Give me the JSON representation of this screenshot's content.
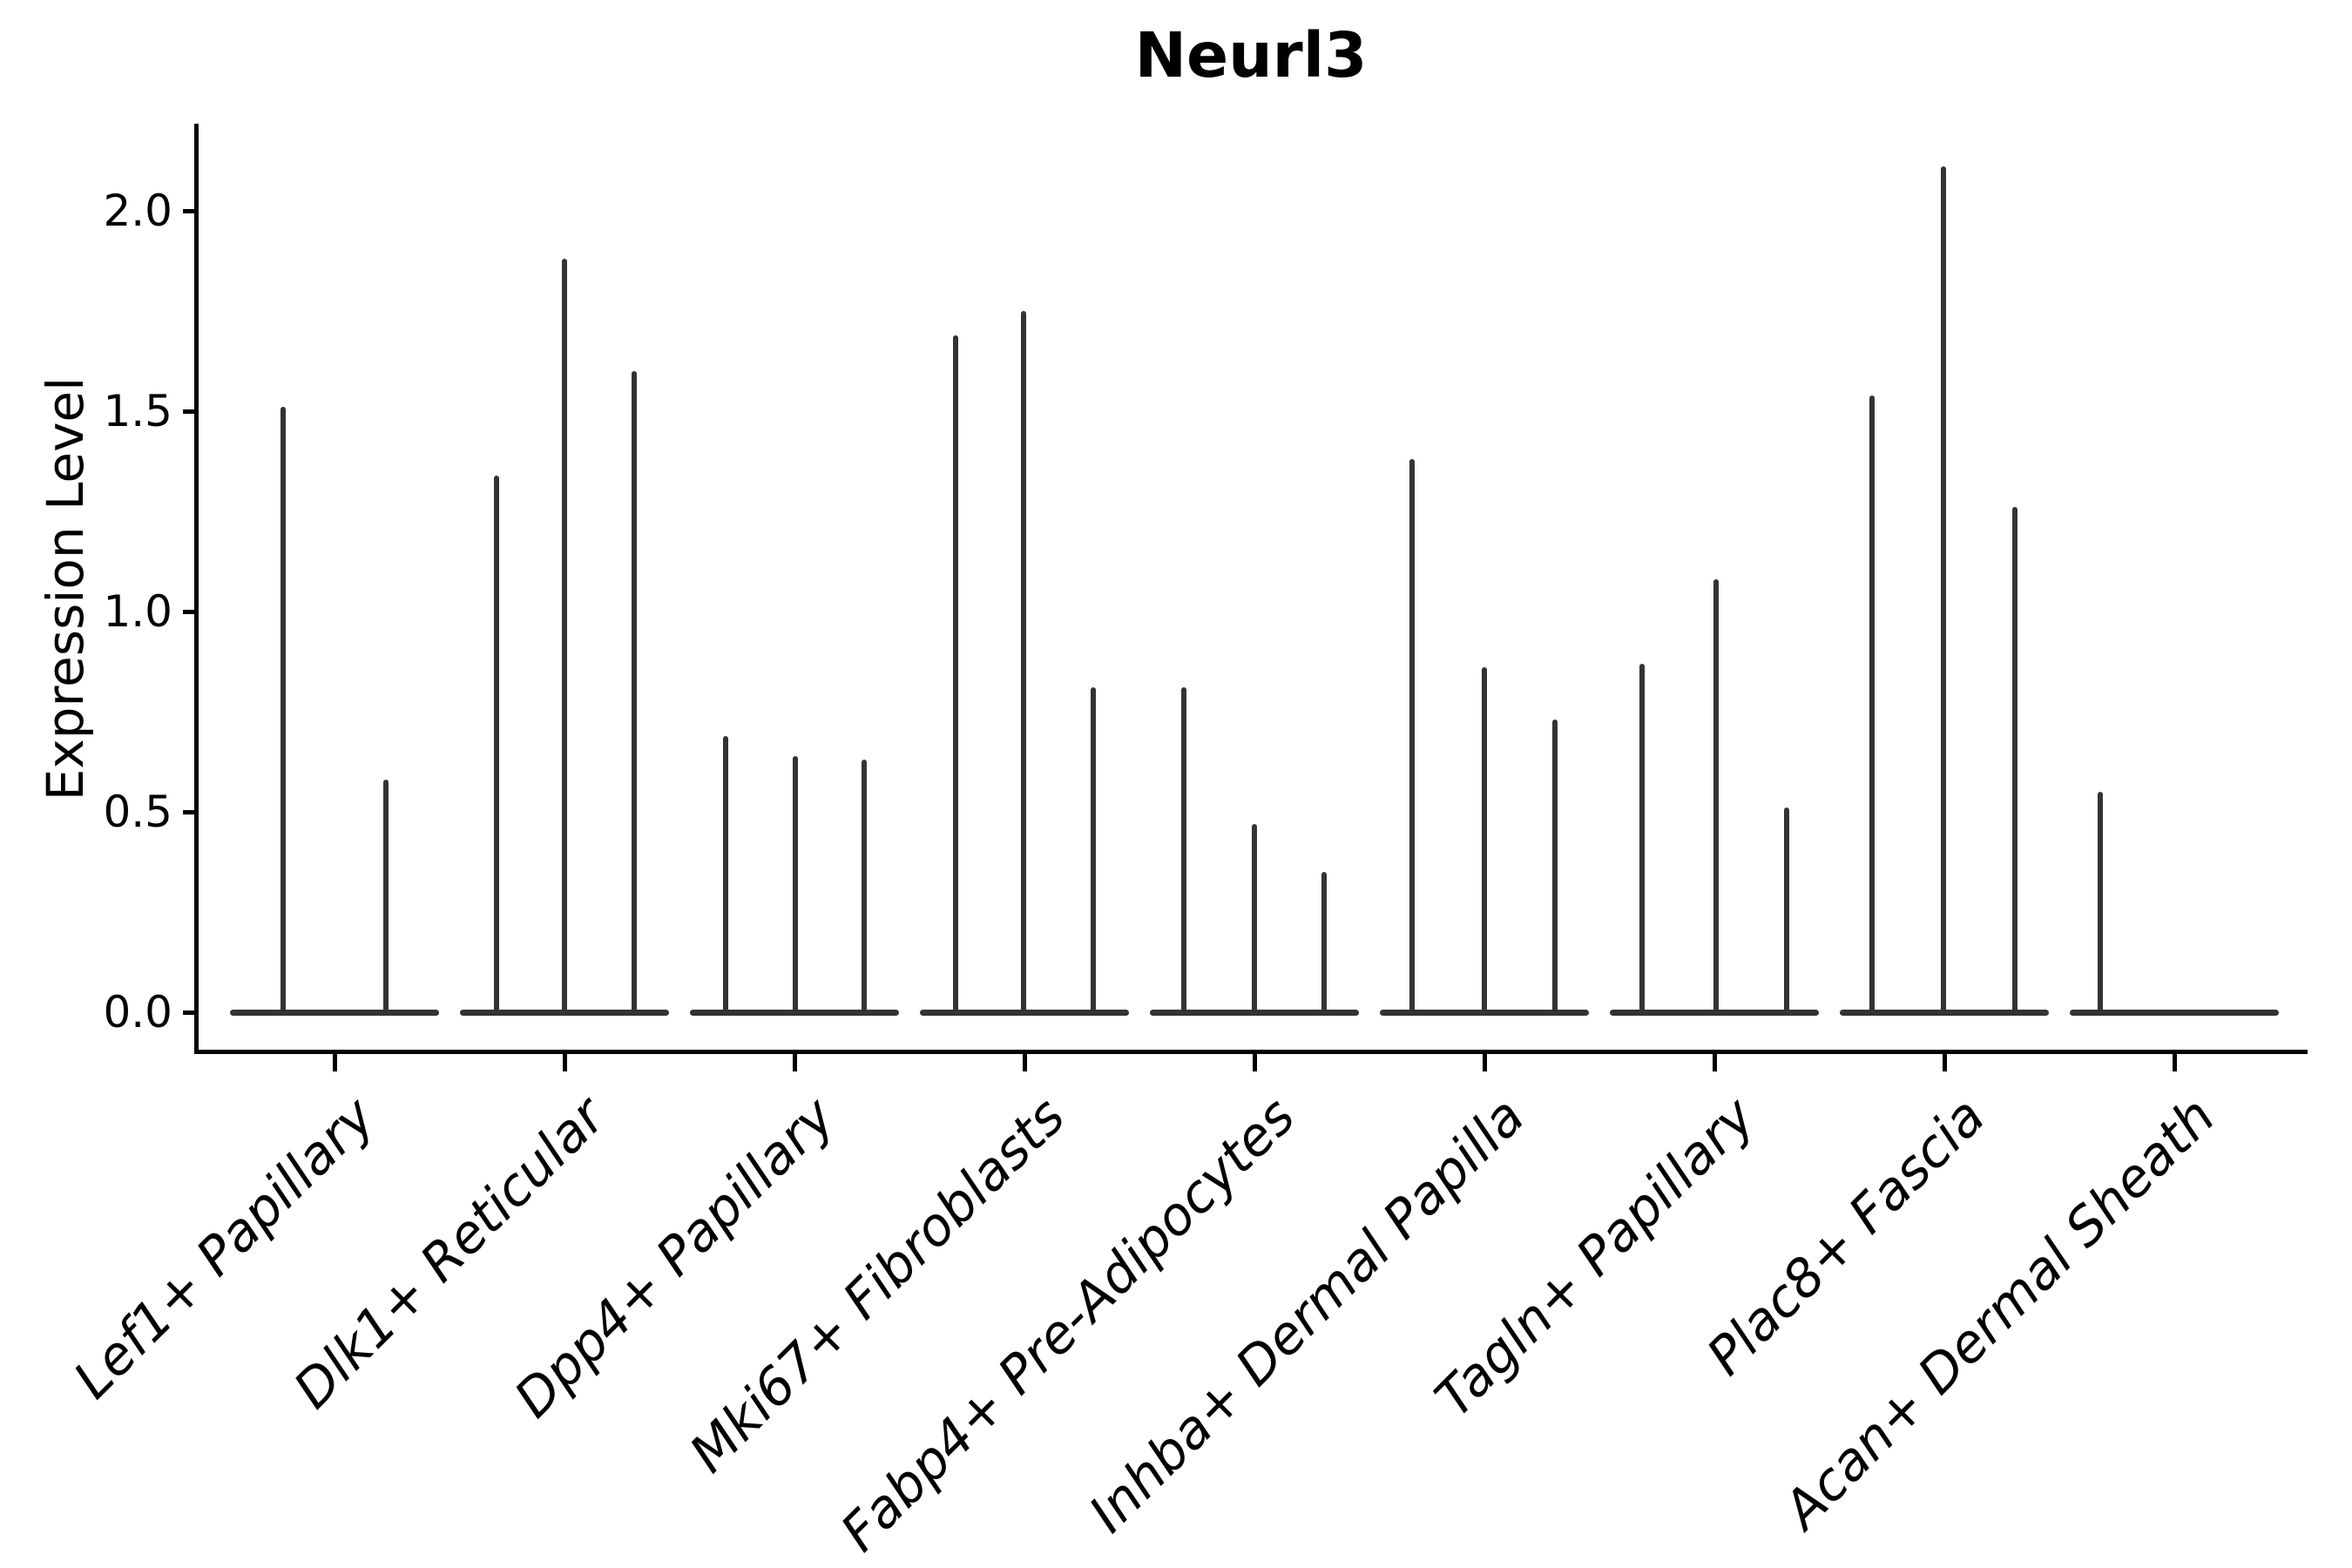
{
  "title": "Neurl3",
  "axes": {
    "ylabel": "Expression Level",
    "ytick_labels": [
      "0.0",
      "0.5",
      "1.0",
      "1.5",
      "2.0"
    ]
  },
  "chart_data": {
    "type": "violin",
    "title": "Neurl3",
    "xlabel": "",
    "ylabel": "Expression Level",
    "ylim": [
      -0.1,
      2.22
    ],
    "yticks": [
      0.0,
      0.5,
      1.0,
      1.5,
      2.0
    ],
    "grid": false,
    "legend_position": "none",
    "categories": [
      "Lef1+ Papillary",
      "Dlk1+ Reticular",
      "Dpp4+ Papillary",
      "Mki67+ Fibroblasts",
      "Fabp4+ Pre-Adipocytes",
      "Inhba+ Dermal Papilla",
      "Tagln+ Papillary",
      "Plac8+ Fascia",
      "Acan+ Dermal Sheath"
    ],
    "description": "Needle-thin violins (sparse single-cell expression). Each category shows a flat zero-line violin band plus 1-3 vertical spikes; spike value = peak expression level reached.",
    "groups": [
      {
        "label": "Lef1+ Papillary",
        "spikes": [
          {
            "dx": -59,
            "value": 1.51
          },
          {
            "dx": 59,
            "value": 0.58
          }
        ]
      },
      {
        "label": "Dlk1+ Reticular",
        "spikes": [
          {
            "dx": -78,
            "value": 1.34
          },
          {
            "dx": 0,
            "value": 1.88
          },
          {
            "dx": 80,
            "value": 1.6
          }
        ]
      },
      {
        "label": "Dpp4+ Papillary",
        "spikes": [
          {
            "dx": -79,
            "value": 0.69
          },
          {
            "dx": 1,
            "value": 0.64
          },
          {
            "dx": 80,
            "value": 0.63
          }
        ]
      },
      {
        "label": "Mki67+ Fibroblasts",
        "spikes": [
          {
            "dx": -79,
            "value": 1.69
          },
          {
            "dx": -1,
            "value": 1.75
          },
          {
            "dx": 79,
            "value": 0.81
          }
        ]
      },
      {
        "label": "Fabp4+ Pre-Adipocytes",
        "spikes": [
          {
            "dx": -81,
            "value": 0.81
          },
          {
            "dx": 0,
            "value": 0.47
          },
          {
            "dx": 80,
            "value": 0.35
          }
        ]
      },
      {
        "label": "Inhba+ Dermal Papilla",
        "spikes": [
          {
            "dx": -83,
            "value": 1.38
          },
          {
            "dx": 0,
            "value": 0.86
          },
          {
            "dx": 81,
            "value": 0.73
          }
        ]
      },
      {
        "label": "Tagln+ Papillary",
        "spikes": [
          {
            "dx": -83,
            "value": 0.87
          },
          {
            "dx": 2,
            "value": 1.08
          },
          {
            "dx": 83,
            "value": 0.51
          }
        ]
      },
      {
        "label": "Plac8+ Fascia",
        "spikes": [
          {
            "dx": -83,
            "value": 1.54
          },
          {
            "dx": -1,
            "value": 2.11
          },
          {
            "dx": 81,
            "value": 1.26
          }
        ]
      },
      {
        "label": "Acan+ Dermal Sheath",
        "spikes": [
          {
            "dx": -85,
            "value": 0.55
          }
        ]
      }
    ]
  },
  "style": {
    "ink_color": "#000000",
    "violin_color": "#333333",
    "background_color": "#ffffff"
  }
}
